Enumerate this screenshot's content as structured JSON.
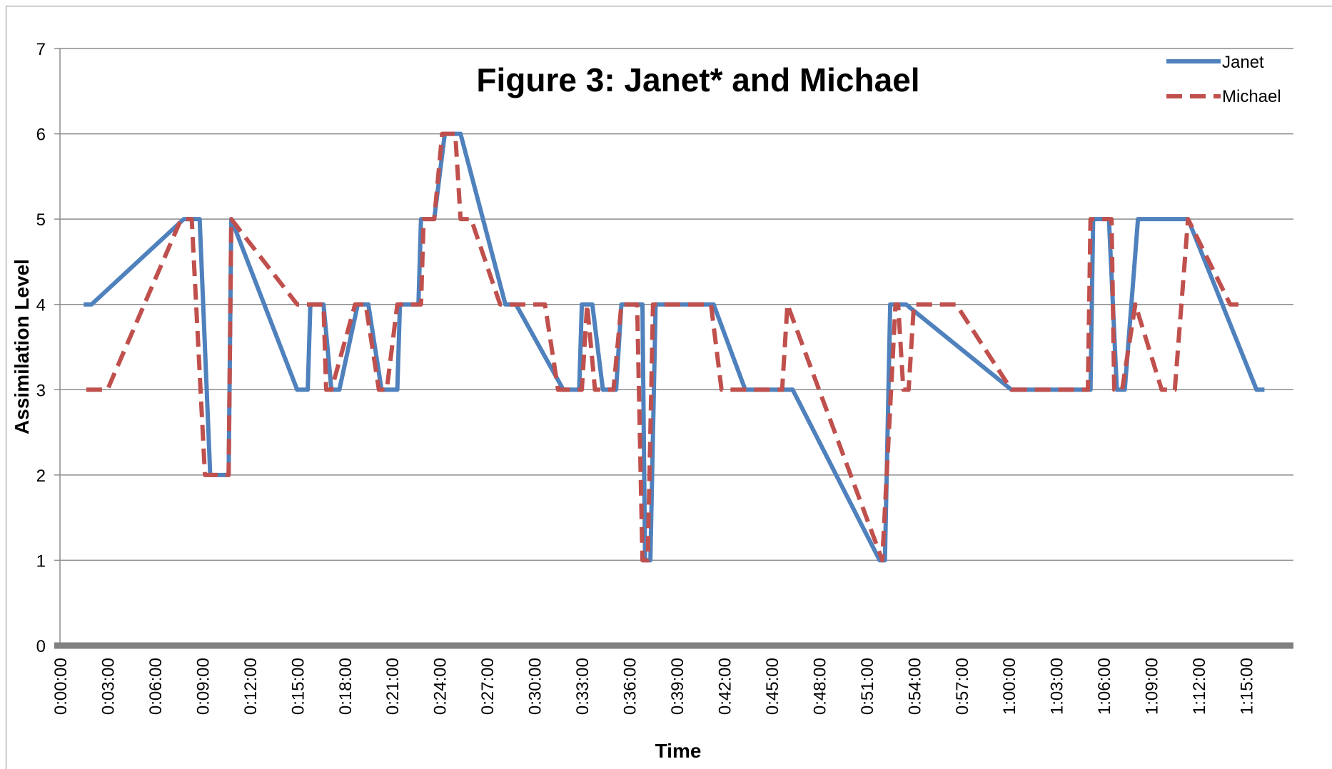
{
  "chart_data": {
    "type": "line",
    "title": "Figure 3: Janet* and Michael",
    "xlabel": "Time",
    "ylabel": "Assimilation Level",
    "ylim": [
      0,
      7
    ],
    "xlim": [
      "0:00:00",
      "1:18:00"
    ],
    "grid": true,
    "legend": "top-right",
    "y_ticks": [
      "0",
      "1",
      "2",
      "3",
      "4",
      "5",
      "6",
      "7"
    ],
    "x_ticks": [
      "0:00:00",
      "0:03:00",
      "0:06:00",
      "0:09:00",
      "0:12:00",
      "0:15:00",
      "0:18:00",
      "0:21:00",
      "0:24:00",
      "0:27:00",
      "0:30:00",
      "0:33:00",
      "0:36:00",
      "0:39:00",
      "0:42:00",
      "0:45:00",
      "0:48:00",
      "0:51:00",
      "0:54:00",
      "0:57:00",
      "1:00:00",
      "1:03:00",
      "1:06:00",
      "1:09:00",
      "1:12:00",
      "1:15:00"
    ],
    "series": [
      {
        "name": "Janet",
        "color": "#4f81bd",
        "style": "solid",
        "points": [
          [
            "0:01:30",
            4
          ],
          [
            "0:02:00",
            4
          ],
          [
            "0:07:50",
            5
          ],
          [
            "0:08:50",
            5
          ],
          [
            "0:09:30",
            2
          ],
          [
            "0:10:40",
            2
          ],
          [
            "0:10:50",
            5
          ],
          [
            "0:15:00",
            3
          ],
          [
            "0:15:40",
            3
          ],
          [
            "0:15:50",
            4
          ],
          [
            "0:16:40",
            4
          ],
          [
            "0:17:10",
            3
          ],
          [
            "0:17:40",
            3
          ],
          [
            "0:18:50",
            4
          ],
          [
            "0:19:30",
            4
          ],
          [
            "0:20:20",
            3
          ],
          [
            "0:21:20",
            3
          ],
          [
            "0:21:30",
            4
          ],
          [
            "0:22:40",
            4
          ],
          [
            "0:22:50",
            5
          ],
          [
            "0:23:40",
            5
          ],
          [
            "0:24:20",
            6
          ],
          [
            "0:25:20",
            6
          ],
          [
            "0:28:10",
            4
          ],
          [
            "0:28:50",
            4
          ],
          [
            "0:31:50",
            3
          ],
          [
            "0:32:50",
            3
          ],
          [
            "0:33:00",
            4
          ],
          [
            "0:33:40",
            4
          ],
          [
            "0:34:20",
            3
          ],
          [
            "0:35:10",
            3
          ],
          [
            "0:35:30",
            4
          ],
          [
            "0:36:20",
            4
          ],
          [
            "0:36:50",
            4
          ],
          [
            "0:37:00",
            1
          ],
          [
            "0:37:20",
            1
          ],
          [
            "0:37:40",
            4
          ],
          [
            "0:38:40",
            4
          ],
          [
            "0:41:20",
            4
          ],
          [
            "0:43:20",
            3
          ],
          [
            "0:46:20",
            3
          ],
          [
            "0:51:50",
            1
          ],
          [
            "0:52:10",
            1
          ],
          [
            "0:52:30",
            4
          ],
          [
            "0:53:30",
            4
          ],
          [
            "1:00:10",
            3
          ],
          [
            "1:05:10",
            3
          ],
          [
            "1:05:20",
            5
          ],
          [
            "1:06:20",
            5
          ],
          [
            "1:06:50",
            3
          ],
          [
            "1:07:20",
            3
          ],
          [
            "1:08:10",
            5
          ],
          [
            "1:11:20",
            5
          ],
          [
            "1:15:40",
            3
          ],
          [
            "1:16:10",
            3
          ]
        ]
      },
      {
        "name": "Michael",
        "color": "#c0504d",
        "style": "dashed",
        "points": [
          [
            "0:01:40",
            3
          ],
          [
            "0:03:00",
            3
          ],
          [
            "0:07:40",
            5
          ],
          [
            "0:08:20",
            5
          ],
          [
            "0:09:10",
            2
          ],
          [
            "0:10:40",
            2
          ],
          [
            "0:10:50",
            5
          ],
          [
            "0:15:00",
            4
          ],
          [
            "0:16:40",
            4
          ],
          [
            "0:16:50",
            3
          ],
          [
            "0:17:10",
            3
          ],
          [
            "0:18:40",
            4
          ],
          [
            "0:19:20",
            4
          ],
          [
            "0:20:10",
            3
          ],
          [
            "0:20:40",
            3
          ],
          [
            "0:21:20",
            4
          ],
          [
            "0:22:50",
            4
          ],
          [
            "0:23:00",
            5
          ],
          [
            "0:23:40",
            5
          ],
          [
            "0:24:10",
            6
          ],
          [
            "0:25:00",
            6
          ],
          [
            "0:25:20",
            5
          ],
          [
            "0:26:00",
            5
          ],
          [
            "0:27:50",
            4
          ],
          [
            "0:30:40",
            4
          ],
          [
            "0:31:30",
            3
          ],
          [
            "0:33:00",
            3
          ],
          [
            "0:33:20",
            4
          ],
          [
            "0:33:50",
            3
          ],
          [
            "0:35:00",
            3
          ],
          [
            "0:35:30",
            4
          ],
          [
            "0:36:30",
            4
          ],
          [
            "0:36:50",
            1
          ],
          [
            "0:37:10",
            1
          ],
          [
            "0:37:30",
            4
          ],
          [
            "0:41:10",
            4
          ],
          [
            "0:41:50",
            3
          ],
          [
            "0:45:40",
            3
          ],
          [
            "0:46:00",
            4
          ],
          [
            "0:52:00",
            1
          ],
          [
            "0:52:50",
            4
          ],
          [
            "0:53:00",
            4
          ],
          [
            "0:53:20",
            3
          ],
          [
            "0:53:40",
            3
          ],
          [
            "0:54:00",
            4
          ],
          [
            "0:56:40",
            4
          ],
          [
            "1:00:10",
            3
          ],
          [
            "1:05:00",
            3
          ],
          [
            "1:05:10",
            5
          ],
          [
            "1:06:30",
            5
          ],
          [
            "1:06:40",
            3
          ],
          [
            "1:07:10",
            3
          ],
          [
            "1:08:00",
            4
          ],
          [
            "1:09:40",
            3
          ],
          [
            "1:10:30",
            3
          ],
          [
            "1:11:20",
            5
          ],
          [
            "1:14:00",
            4
          ],
          [
            "1:14:40",
            4
          ]
        ]
      }
    ]
  }
}
